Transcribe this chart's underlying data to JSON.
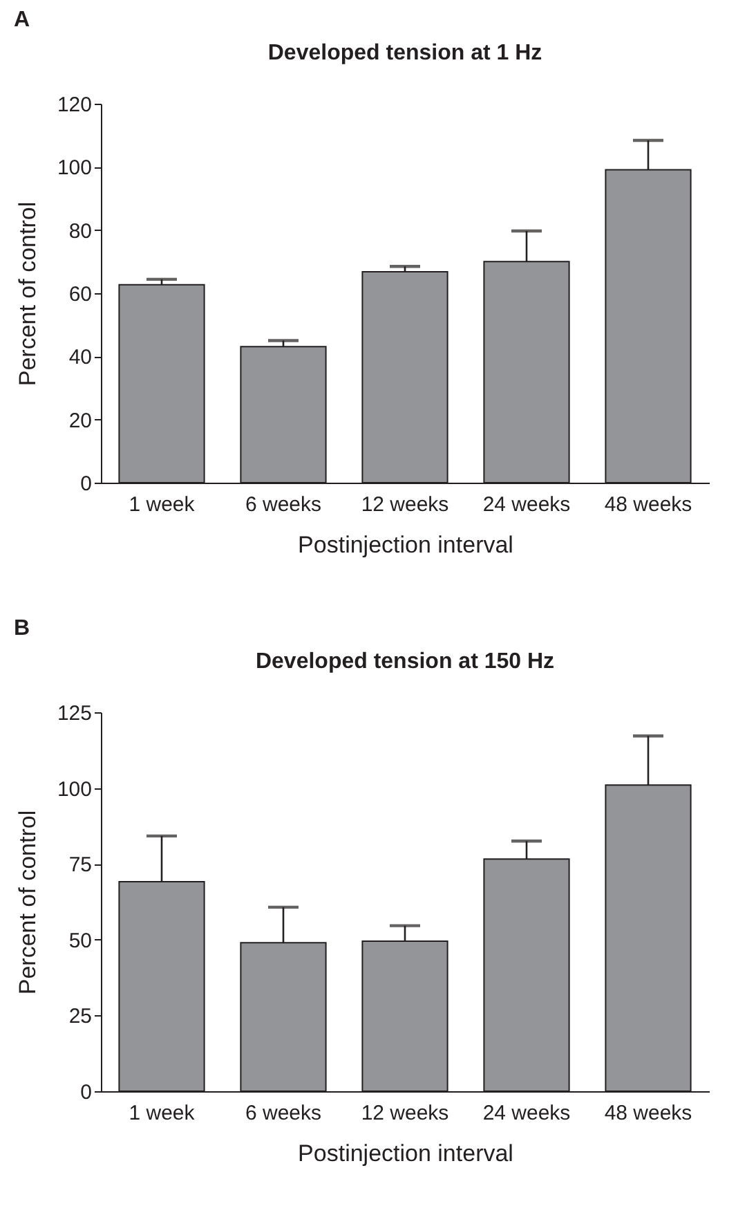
{
  "chart_data": [
    {
      "type": "bar",
      "title": "Developed tension at 1 Hz",
      "xlabel": "Postinjection interval",
      "ylabel": "Percent of control",
      "annotations": [
        "A"
      ],
      "categories": [
        "1 week",
        "6 weeks",
        "12 weeks",
        "24 weeks",
        "48 weeks"
      ],
      "values": [
        62.7,
        43.1,
        66.8,
        70.0,
        99.1
      ],
      "errors": [
        [
          62.7,
          64.4
        ],
        [
          43.1,
          45.0
        ],
        [
          66.8,
          68.5
        ],
        [
          70.0,
          79.7
        ],
        [
          99.1,
          108.4
        ]
      ],
      "color": "#939598",
      "ylim": [
        0,
        120
      ],
      "yticks": [
        0,
        20,
        40,
        60,
        80,
        100,
        120
      ],
      "grid": false
    },
    {
      "type": "bar",
      "title": "Developed tension at 150 Hz",
      "xlabel": "Postinjection interval",
      "ylabel": "Percent of control",
      "annotations": [
        "B"
      ],
      "categories": [
        "1 week",
        "6 weeks",
        "12 weeks",
        "24 weeks",
        "48 weeks"
      ],
      "values": [
        69.1,
        49.0,
        49.5,
        76.6,
        101.0
      ],
      "errors": [
        [
          69.1,
          84.2
        ],
        [
          49.0,
          60.7
        ],
        [
          49.5,
          54.6
        ],
        [
          76.6,
          82.5
        ],
        [
          101.0,
          117.2
        ]
      ],
      "color": "#939598",
      "ylim": [
        0,
        125
      ],
      "yticks": [
        0,
        25,
        50,
        75,
        100,
        125
      ],
      "grid": false
    }
  ]
}
